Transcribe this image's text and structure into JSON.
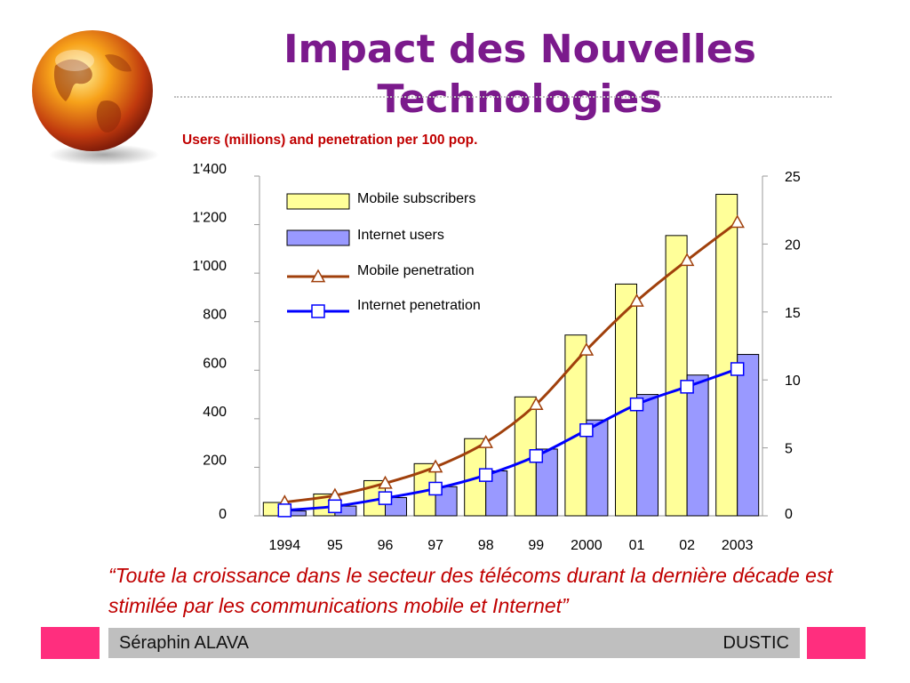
{
  "slide": {
    "title": "Impact des Nouvelles Technologies",
    "subtitle": "Users (millions) and penetration per 100 pop.",
    "quote": "“Toute la croissance dans le secteur des télécoms durant la dernière décade est stimilée par les communications mobile et Internet”"
  },
  "footer": {
    "author": "Séraphin ALAVA",
    "org": "DUSTIC"
  },
  "colors": {
    "title": "#7b1a8c",
    "accent_red": "#c00000",
    "mobile_bar": "#ffff99",
    "internet_bar": "#9999ff",
    "mobile_line": "#a0400c",
    "internet_line": "#0000ff",
    "footer_square": "#ff2e7e",
    "footer_bar": "#bfbfbf"
  },
  "chart_data": {
    "type": "bar",
    "categories": [
      "1994",
      "95",
      "96",
      "97",
      "98",
      "99",
      "2000",
      "01",
      "02",
      "2003"
    ],
    "series": [
      {
        "name": "Mobile subscribers",
        "kind": "bar",
        "axis": "left",
        "values": [
          55,
          90,
          145,
          215,
          318,
          490,
          745,
          955,
          1155,
          1325
        ]
      },
      {
        "name": "Internet users",
        "kind": "bar",
        "axis": "left",
        "values": [
          20,
          40,
          75,
          120,
          185,
          275,
          395,
          500,
          580,
          665
        ]
      },
      {
        "name": "Mobile penetration",
        "kind": "line",
        "marker": "triangle",
        "axis": "right",
        "values": [
          1.0,
          1.5,
          2.4,
          3.6,
          5.4,
          8.2,
          12.2,
          15.8,
          18.8,
          21.6
        ]
      },
      {
        "name": "Internet penetration",
        "kind": "line",
        "marker": "square",
        "axis": "right",
        "values": [
          0.4,
          0.7,
          1.3,
          2.0,
          3.0,
          4.4,
          6.3,
          8.2,
          9.5,
          10.8
        ]
      }
    ],
    "y_left": {
      "ylim": [
        0,
        1400
      ],
      "ticks": [
        0,
        200,
        400,
        600,
        800,
        1000,
        1200,
        1400
      ],
      "tick_labels": [
        "0",
        "200",
        "400",
        "600",
        "800",
        "1'000",
        "1'200",
        "1'400"
      ]
    },
    "y_right": {
      "ylim": [
        0,
        25
      ],
      "ticks": [
        0,
        5,
        10,
        15,
        20,
        25
      ],
      "tick_labels": [
        "0",
        "5",
        "10",
        "15",
        "20",
        "25"
      ]
    },
    "legend_position": "top-left",
    "grid": false
  }
}
